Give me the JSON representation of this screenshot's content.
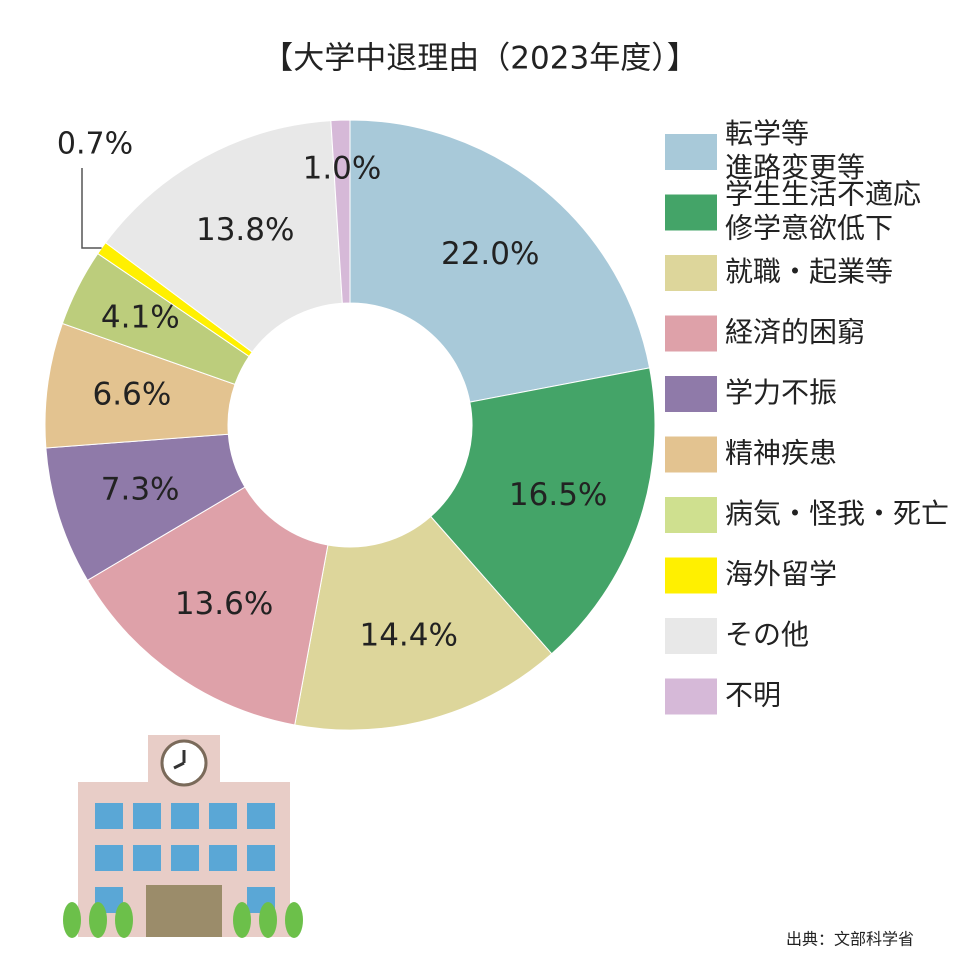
{
  "chart_data": {
    "type": "donut",
    "title": "【大学中退理由（2023年度）】",
    "categories": [
      "転学等\n進路変更等",
      "学生生活不適応\n修学意欲低下",
      "就職・起業等",
      "経済的困窮",
      "学力不振",
      "精神疾患",
      "病気・怪我・死亡",
      "海外留学",
      "その他",
      "不明"
    ],
    "values": [
      22.0,
      16.5,
      14.4,
      13.6,
      7.3,
      6.6,
      4.1,
      0.7,
      13.8,
      1.0
    ],
    "value_labels": [
      "22.0%",
      "16.5%",
      "14.4%",
      "13.6%",
      "7.3%",
      "6.6%",
      "4.1%",
      "0.7%",
      "13.8%",
      "1.0%"
    ],
    "colors": [
      "#a8c9d9",
      "#44a468",
      "#ddd69b",
      "#dea1a9",
      "#8f7aa9",
      "#e3c390",
      "#bccd7c",
      "#fff000",
      "#e8e8e8",
      "#d6b9d8"
    ],
    "legend_colors": [
      "#a8c9d9",
      "#44a468",
      "#ddd69b",
      "#dea1a9",
      "#8f7aa9",
      "#e3c390",
      "#cfe08f",
      "#fff000",
      "#e8e8e8",
      "#d6b9d8"
    ],
    "source": "出典：文部科学省"
  }
}
